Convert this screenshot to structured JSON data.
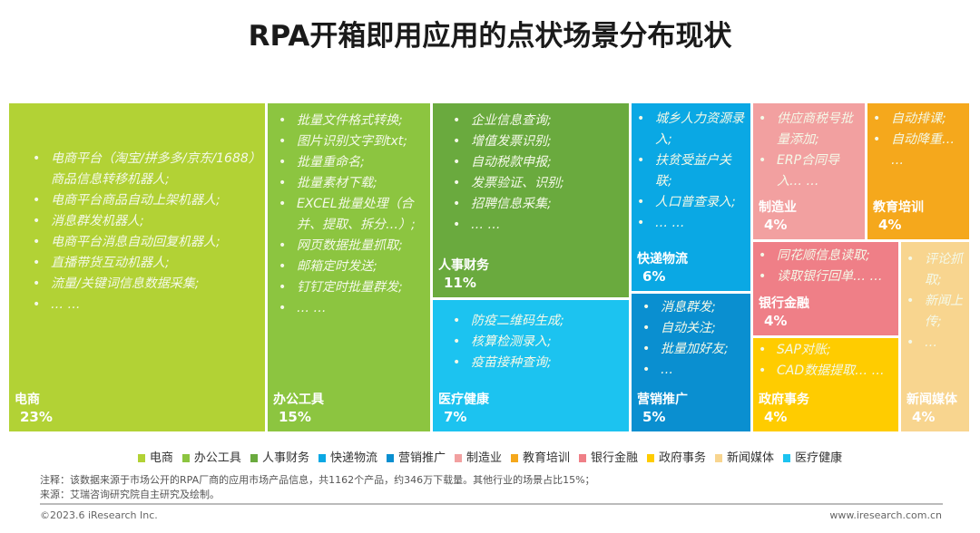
{
  "title": "RPA开箱即用应用的点状场景分布现状",
  "chart_data": {
    "type": "treemap",
    "title": "RPA开箱即用应用的点状场景分布现状",
    "items": [
      {
        "name": "电商",
        "value": 23,
        "label": "23%",
        "color": "#b2d235",
        "bullets": [
          "电商平台（淘宝/拼多多/京东/1688）商品信息转移机器人;",
          "电商平台商品自动上架机器人;",
          "消息群发机器人;",
          "电商平台消息自动回复机器人;",
          "直播带货互动机器人;",
          "流量/关键词信息数据采集;",
          "… …"
        ]
      },
      {
        "name": "办公工具",
        "value": 15,
        "label": "15%",
        "color": "#8cc540",
        "bullets": [
          "批量文件格式转换;",
          "图片识别文字到txt;",
          "批量重命名;",
          "批量素材下载;",
          "EXCEL批量处理（合并、提取、拆分…）;",
          "网页数据批量抓取;",
          "邮箱定时发送;",
          "钉钉定时批量群发;",
          "… …"
        ]
      },
      {
        "name": "人事财务",
        "value": 11,
        "label": "11%",
        "color": "#6aaa3e",
        "bullets": [
          "企业信息查询;",
          "增值发票识别;",
          "自动税款申报;",
          "发票验证、识别;",
          "招聘信息采集;",
          "… …"
        ]
      },
      {
        "name": "医疗健康",
        "value": 7,
        "label": "7%",
        "color": "#1cc3f0",
        "bullets": [
          "防疫二维码生成;",
          "核算检测录入;",
          "疫苗接种查询;"
        ]
      },
      {
        "name": "快递物流",
        "value": 6,
        "label": "6%",
        "color": "#0aa8e4",
        "bullets": [
          "城乡人力资源录入;",
          "扶贫受益户关联;",
          "人口普查录入;",
          "… …"
        ]
      },
      {
        "name": "营销推广",
        "value": 5,
        "label": "5%",
        "color": "#0a8fd0",
        "bullets": [
          "消息群发;",
          "自动关注;",
          "批量加好友;",
          "…"
        ]
      },
      {
        "name": "制造业",
        "value": 4,
        "label": "4%",
        "color": "#f2a0a0",
        "bullets": [
          "供应商税号批量添加;",
          "ERP合同导入… …"
        ]
      },
      {
        "name": "教育培训",
        "value": 4,
        "label": "4%",
        "color": "#f5a81c",
        "bullets": [
          "自动排课;",
          "自动降重… …"
        ]
      },
      {
        "name": "银行金融",
        "value": 4,
        "label": "4%",
        "color": "#ef7f87",
        "bullets": [
          "同花顺信息读取;",
          "读取银行回单… …"
        ]
      },
      {
        "name": "政府事务",
        "value": 4,
        "label": "4%",
        "color": "#ffcc00",
        "bullets": [
          "SAP对账;",
          "CAD数据提取… …"
        ]
      },
      {
        "name": "新闻媒体",
        "value": 4,
        "label": "4%",
        "color": "#f8d58f",
        "bullets": [
          "评论抓取;",
          "新闻上传;",
          "…"
        ]
      }
    ],
    "legend": [
      "电商",
      "办公工具",
      "人事财务",
      "快递物流",
      "营销推广",
      "制造业",
      "教育培训",
      "银行金融",
      "政府事务",
      "新闻媒体",
      "医疗健康"
    ],
    "legend_placement": "bottom"
  },
  "note": "注释：该数据来源于市场公开的RPA厂商的应用市场产品信息，共1162个产品，约346万下载量。其他行业的场景占比15%；",
  "source": "来源：艾瑞咨询研究院自主研究及绘制。",
  "copyright": "©2023.6 iResearch Inc.",
  "website": "www.iresearch.com.cn"
}
